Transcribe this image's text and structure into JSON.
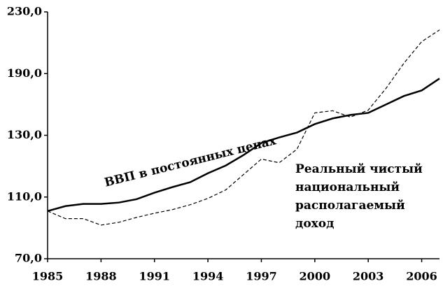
{
  "chart_data": {
    "type": "line",
    "x": [
      1985,
      1986,
      1987,
      1988,
      1989,
      1990,
      1991,
      1992,
      1993,
      1994,
      1995,
      1996,
      1997,
      1998,
      1999,
      2000,
      2001,
      2002,
      2003,
      2004,
      2005,
      2006,
      2007
    ],
    "series": [
      {
        "name": "ВВП в постоянных ценах",
        "color": "#000000",
        "style": "solid",
        "values": [
          100.9,
          104.1,
          105.5,
          105.5,
          106.4,
          108.6,
          111.4,
          113.2,
          114.8,
          117.7,
          120.2,
          123.6,
          127.5,
          129.3,
          132.7,
          140.9,
          146.4,
          149.8,
          151.8,
          160,
          168.2,
          173.6,
          185.2
        ]
      },
      {
        "name": [
          "Реальный чистый",
          "национальный",
          "располагаемый",
          "доход"
        ],
        "color": "#000000",
        "style": "dashed",
        "values": [
          100.9,
          96,
          96,
          91.8,
          93.6,
          96.8,
          99.5,
          101.8,
          105,
          109.1,
          112.3,
          117.3,
          122.3,
          121.1,
          125.5,
          151.8,
          153.9,
          147.7,
          154.5,
          175.7,
          196.7,
          210.7,
          218.3
        ]
      }
    ],
    "xlim": [
      1985,
      2007
    ],
    "xticks": [
      1985,
      1988,
      1991,
      1994,
      1997,
      2000,
      2003,
      2006
    ],
    "ylim": [
      70,
      230
    ],
    "yticks": [
      {
        "value": 70,
        "label": "70,0"
      },
      {
        "value": 110,
        "label": "110,0"
      },
      {
        "value": 130,
        "label": "130,0"
      },
      {
        "value": 190,
        "label": "190,0"
      },
      {
        "value": 230,
        "label": "230,0"
      }
    ],
    "grid": false
  }
}
